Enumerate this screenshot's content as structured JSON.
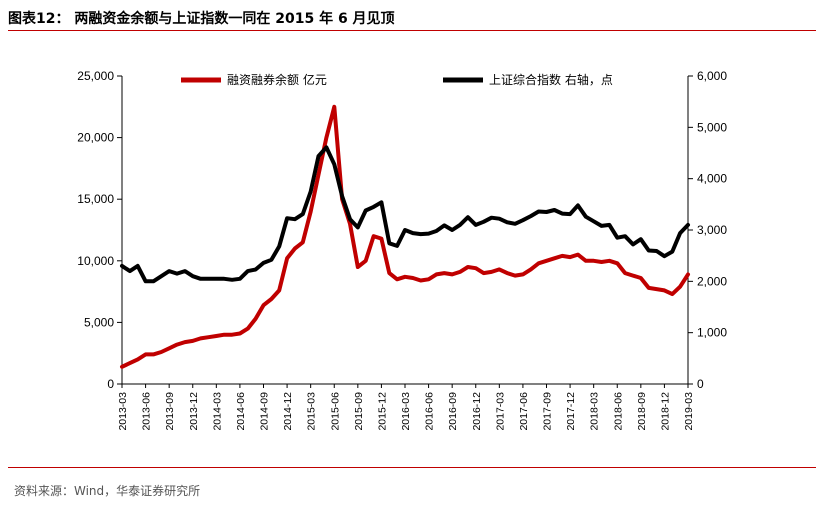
{
  "title": "图表12：  两融资金余额与上证指数一同在 2015 年 6 月见顶",
  "source": "资料来源：Wind，华泰证券研究所",
  "colors": {
    "accent": "#c00000",
    "margin_series": "#c00000",
    "index_series": "#000000"
  },
  "chart_data": {
    "type": "line",
    "title": "",
    "x": [
      "2013-03",
      "2013-06",
      "2013-09",
      "2013-12",
      "2014-03",
      "2014-06",
      "2014-09",
      "2014-12",
      "2015-03",
      "2015-06",
      "2015-09",
      "2015-12",
      "2016-03",
      "2016-06",
      "2016-09",
      "2016-12",
      "2017-03",
      "2017-06",
      "2017-09",
      "2017-12",
      "2018-03",
      "2018-06",
      "2018-09",
      "2018-12",
      "2019-03"
    ],
    "y_left_ticks": [
      "0",
      "5,000",
      "10,000",
      "15,000",
      "20,000",
      "25,000"
    ],
    "y_right_ticks": [
      "0",
      "1,000",
      "2,000",
      "3,000",
      "4,000",
      "5,000",
      "6,000"
    ],
    "ylim_left": [
      0,
      25000
    ],
    "ylim_right": [
      0,
      6000
    ],
    "grid": false,
    "legend_position": "top",
    "series": [
      {
        "name": "融资融券余额 亿元",
        "axis": "left",
        "color": "#c00000",
        "points": [
          [
            "2013-03",
            1400
          ],
          [
            "2013-04",
            1700
          ],
          [
            "2013-05",
            2000
          ],
          [
            "2013-06",
            2400
          ],
          [
            "2013-07",
            2400
          ],
          [
            "2013-08",
            2600
          ],
          [
            "2013-09",
            2900
          ],
          [
            "2013-10",
            3200
          ],
          [
            "2013-11",
            3400
          ],
          [
            "2013-12",
            3500
          ],
          [
            "2014-01",
            3700
          ],
          [
            "2014-02",
            3800
          ],
          [
            "2014-03",
            3900
          ],
          [
            "2014-04",
            4000
          ],
          [
            "2014-05",
            4000
          ],
          [
            "2014-06",
            4100
          ],
          [
            "2014-07",
            4500
          ],
          [
            "2014-08",
            5300
          ],
          [
            "2014-09",
            6400
          ],
          [
            "2014-10",
            6900
          ],
          [
            "2014-11",
            7600
          ],
          [
            "2014-12",
            10200
          ],
          [
            "2015-01",
            11000
          ],
          [
            "2015-02",
            11500
          ],
          [
            "2015-03",
            14000
          ],
          [
            "2015-04",
            17000
          ],
          [
            "2015-05",
            20000
          ],
          [
            "2015-06",
            22500
          ],
          [
            "2015-07",
            15000
          ],
          [
            "2015-08",
            13000
          ],
          [
            "2015-09",
            9500
          ],
          [
            "2015-10",
            10000
          ],
          [
            "2015-11",
            12000
          ],
          [
            "2015-12",
            11800
          ],
          [
            "2016-01",
            9000
          ],
          [
            "2016-02",
            8500
          ],
          [
            "2016-03",
            8700
          ],
          [
            "2016-04",
            8600
          ],
          [
            "2016-05",
            8400
          ],
          [
            "2016-06",
            8500
          ],
          [
            "2016-07",
            8900
          ],
          [
            "2016-08",
            9000
          ],
          [
            "2016-09",
            8900
          ],
          [
            "2016-10",
            9100
          ],
          [
            "2016-11",
            9500
          ],
          [
            "2016-12",
            9400
          ],
          [
            "2017-01",
            9000
          ],
          [
            "2017-02",
            9100
          ],
          [
            "2017-03",
            9300
          ],
          [
            "2017-04",
            9000
          ],
          [
            "2017-05",
            8800
          ],
          [
            "2017-06",
            8900
          ],
          [
            "2017-07",
            9300
          ],
          [
            "2017-08",
            9800
          ],
          [
            "2017-09",
            10000
          ],
          [
            "2017-10",
            10200
          ],
          [
            "2017-11",
            10400
          ],
          [
            "2017-12",
            10300
          ],
          [
            "2018-01",
            10500
          ],
          [
            "2018-02",
            10000
          ],
          [
            "2018-03",
            10000
          ],
          [
            "2018-04",
            9900
          ],
          [
            "2018-05",
            10000
          ],
          [
            "2018-06",
            9800
          ],
          [
            "2018-07",
            9000
          ],
          [
            "2018-08",
            8800
          ],
          [
            "2018-09",
            8600
          ],
          [
            "2018-10",
            7800
          ],
          [
            "2018-11",
            7700
          ],
          [
            "2018-12",
            7600
          ],
          [
            "2019-01",
            7300
          ],
          [
            "2019-02",
            7900
          ],
          [
            "2019-03",
            8900
          ]
        ]
      },
      {
        "name": "上证综合指数 右轴，点",
        "axis": "right",
        "color": "#000000",
        "points": [
          [
            "2013-03",
            2300
          ],
          [
            "2013-04",
            2200
          ],
          [
            "2013-05",
            2300
          ],
          [
            "2013-06",
            2000
          ],
          [
            "2013-07",
            2000
          ],
          [
            "2013-08",
            2100
          ],
          [
            "2013-09",
            2200
          ],
          [
            "2013-10",
            2150
          ],
          [
            "2013-11",
            2200
          ],
          [
            "2013-12",
            2100
          ],
          [
            "2014-01",
            2050
          ],
          [
            "2014-02",
            2050
          ],
          [
            "2014-03",
            2050
          ],
          [
            "2014-04",
            2050
          ],
          [
            "2014-05",
            2030
          ],
          [
            "2014-06",
            2050
          ],
          [
            "2014-07",
            2200
          ],
          [
            "2014-08",
            2230
          ],
          [
            "2014-09",
            2360
          ],
          [
            "2014-10",
            2420
          ],
          [
            "2014-11",
            2680
          ],
          [
            "2014-12",
            3230
          ],
          [
            "2015-01",
            3210
          ],
          [
            "2015-02",
            3310
          ],
          [
            "2015-03",
            3750
          ],
          [
            "2015-04",
            4440
          ],
          [
            "2015-05",
            4610
          ],
          [
            "2015-06",
            4280
          ],
          [
            "2015-07",
            3660
          ],
          [
            "2015-08",
            3210
          ],
          [
            "2015-09",
            3050
          ],
          [
            "2015-10",
            3380
          ],
          [
            "2015-11",
            3450
          ],
          [
            "2015-12",
            3540
          ],
          [
            "2016-01",
            2740
          ],
          [
            "2016-02",
            2690
          ],
          [
            "2016-03",
            3000
          ],
          [
            "2016-04",
            2940
          ],
          [
            "2016-05",
            2920
          ],
          [
            "2016-06",
            2930
          ],
          [
            "2016-07",
            2980
          ],
          [
            "2016-08",
            3090
          ],
          [
            "2016-09",
            3000
          ],
          [
            "2016-10",
            3100
          ],
          [
            "2016-11",
            3250
          ],
          [
            "2016-12",
            3100
          ],
          [
            "2017-01",
            3160
          ],
          [
            "2017-02",
            3240
          ],
          [
            "2017-03",
            3220
          ],
          [
            "2017-04",
            3150
          ],
          [
            "2017-05",
            3120
          ],
          [
            "2017-06",
            3190
          ],
          [
            "2017-07",
            3270
          ],
          [
            "2017-08",
            3360
          ],
          [
            "2017-09",
            3350
          ],
          [
            "2017-10",
            3390
          ],
          [
            "2017-11",
            3320
          ],
          [
            "2017-12",
            3310
          ],
          [
            "2018-01",
            3480
          ],
          [
            "2018-02",
            3260
          ],
          [
            "2018-03",
            3170
          ],
          [
            "2018-04",
            3080
          ],
          [
            "2018-05",
            3100
          ],
          [
            "2018-06",
            2850
          ],
          [
            "2018-07",
            2880
          ],
          [
            "2018-08",
            2720
          ],
          [
            "2018-09",
            2820
          ],
          [
            "2018-10",
            2600
          ],
          [
            "2018-11",
            2590
          ],
          [
            "2018-12",
            2490
          ],
          [
            "2019-01",
            2580
          ],
          [
            "2019-02",
            2940
          ],
          [
            "2019-03",
            3100
          ]
        ]
      }
    ]
  }
}
